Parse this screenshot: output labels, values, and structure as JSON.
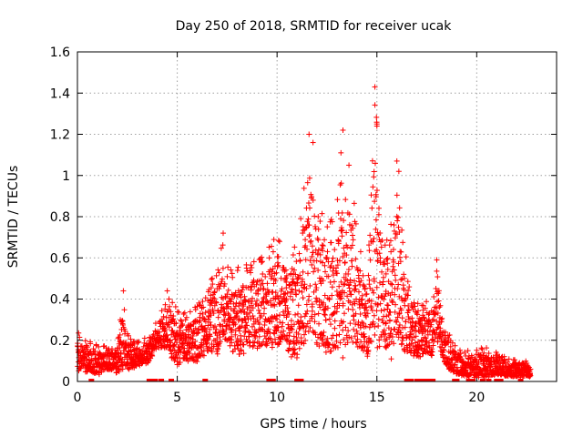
{
  "chart_data": {
    "type": "scatter",
    "title": "Day 250 of 2018, SRMTID for receiver ucak",
    "xlabel": "GPS time / hours",
    "ylabel": "SRMTID / TECUs",
    "xlim": [
      0,
      24
    ],
    "ylim": [
      0,
      1.6
    ],
    "x_ticks": [
      0,
      5,
      10,
      15,
      20
    ],
    "x_tick_labels": [
      "0",
      "5",
      "10",
      "15",
      "20"
    ],
    "y_ticks": [
      0,
      0.2,
      0.4,
      0.6,
      0.8,
      1.0,
      1.2,
      1.4,
      1.6
    ],
    "y_tick_labels": [
      "0",
      "0.2",
      "0.4",
      "0.6",
      "0.8",
      "1",
      "1.2",
      "1.4",
      "1.6"
    ],
    "grid": true,
    "marker": "+",
    "series": [
      {
        "name": "SRMTID",
        "color": "#ff0000",
        "envelope": [
          [
            0.0,
            0.05,
            0.24
          ],
          [
            0.5,
            0.04,
            0.2
          ],
          [
            1.0,
            0.03,
            0.18
          ],
          [
            1.5,
            0.05,
            0.17
          ],
          [
            2.0,
            0.04,
            0.18
          ],
          [
            2.3,
            0.05,
            0.44
          ],
          [
            2.5,
            0.05,
            0.24
          ],
          [
            3.0,
            0.07,
            0.19
          ],
          [
            3.5,
            0.08,
            0.22
          ],
          [
            4.0,
            0.15,
            0.3
          ],
          [
            4.5,
            0.15,
            0.44
          ],
          [
            5.0,
            0.06,
            0.35
          ],
          [
            5.5,
            0.1,
            0.33
          ],
          [
            6.0,
            0.08,
            0.38
          ],
          [
            6.5,
            0.12,
            0.45
          ],
          [
            7.0,
            0.12,
            0.58
          ],
          [
            7.3,
            0.2,
            0.72
          ],
          [
            7.5,
            0.16,
            0.6
          ],
          [
            8.0,
            0.1,
            0.55
          ],
          [
            8.5,
            0.15,
            0.6
          ],
          [
            9.0,
            0.15,
            0.64
          ],
          [
            9.5,
            0.15,
            0.65
          ],
          [
            10.0,
            0.16,
            0.72
          ],
          [
            10.5,
            0.12,
            0.68
          ],
          [
            11.0,
            0.1,
            0.7
          ],
          [
            11.5,
            0.2,
            1.1
          ],
          [
            11.7,
            0.22,
            1.2
          ],
          [
            12.0,
            0.14,
            0.9
          ],
          [
            12.5,
            0.1,
            0.8
          ],
          [
            13.0,
            0.12,
            1.0
          ],
          [
            13.3,
            0.1,
            1.22
          ],
          [
            13.7,
            0.15,
            1.05
          ],
          [
            14.0,
            0.13,
            0.75
          ],
          [
            14.5,
            0.1,
            0.6
          ],
          [
            14.9,
            0.15,
            1.43
          ],
          [
            15.3,
            0.15,
            0.7
          ],
          [
            15.7,
            0.1,
            0.9
          ],
          [
            16.0,
            0.2,
            1.07
          ],
          [
            16.3,
            0.12,
            0.7
          ],
          [
            16.8,
            0.12,
            0.45
          ],
          [
            17.3,
            0.12,
            0.4
          ],
          [
            17.8,
            0.12,
            0.42
          ],
          [
            18.0,
            0.2,
            0.59
          ],
          [
            18.4,
            0.08,
            0.27
          ],
          [
            18.8,
            0.03,
            0.2
          ],
          [
            19.3,
            0.02,
            0.14
          ],
          [
            20.0,
            0.02,
            0.17
          ],
          [
            20.5,
            0.02,
            0.17
          ],
          [
            21.0,
            0.03,
            0.14
          ],
          [
            21.5,
            0.02,
            0.12
          ],
          [
            22.0,
            0.02,
            0.11
          ],
          [
            22.5,
            0.02,
            0.1
          ],
          [
            22.7,
            0.02,
            0.09
          ]
        ],
        "points": [
          [
            2.3,
            0.44
          ],
          [
            4.5,
            0.44
          ],
          [
            7.3,
            0.72
          ],
          [
            11.6,
            1.2
          ],
          [
            11.8,
            1.16
          ],
          [
            13.3,
            1.22
          ],
          [
            13.2,
            1.11
          ],
          [
            13.6,
            1.05
          ],
          [
            14.9,
            1.43
          ],
          [
            15.0,
            1.25
          ],
          [
            15.0,
            1.24
          ],
          [
            16.0,
            1.07
          ],
          [
            16.1,
            1.02
          ],
          [
            18.0,
            0.59
          ],
          [
            9.9,
            0.56
          ]
        ],
        "zero_points": [
          0.7,
          3.6,
          3.8,
          3.9,
          4.2,
          4.7,
          6.4,
          9.6,
          9.8,
          11.0,
          11.2,
          16.5,
          16.6,
          16.7,
          17.0,
          17.1,
          17.3,
          17.4,
          17.6,
          17.8,
          18.9,
          19.0,
          19.6,
          19.8,
          20.3,
          20.6,
          21.0,
          21.2,
          22.2
        ]
      }
    ]
  }
}
